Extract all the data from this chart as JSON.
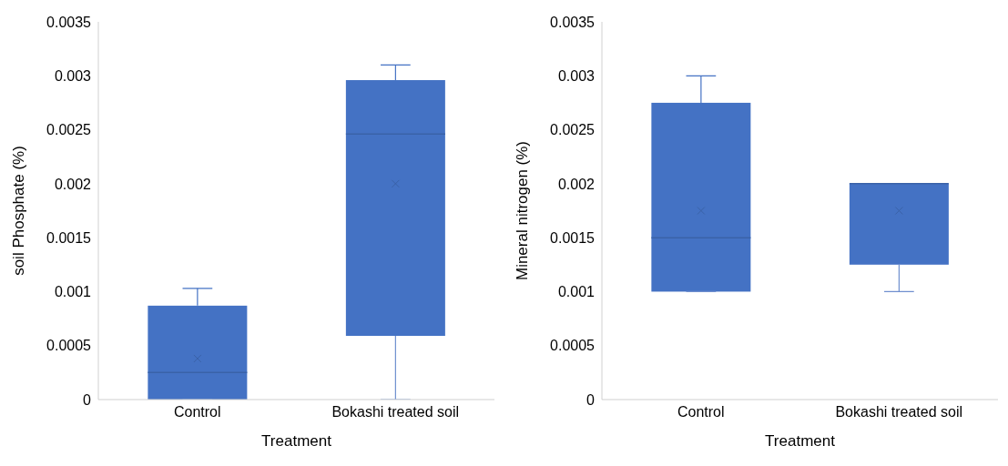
{
  "chart_data": [
    {
      "type": "box",
      "xlabel": "Treatment",
      "ylabel": "soil Phosphate (%)",
      "categories": [
        "Control",
        "Bokashi treated soil"
      ],
      "color": "#4472c4",
      "ylim": [
        0,
        0.0035
      ],
      "yticks": [
        0,
        0.0005,
        0.001,
        0.0015,
        0.002,
        0.0025,
        0.003,
        0.0035
      ],
      "grid": false,
      "legend": false,
      "boxes": [
        {
          "low": 0,
          "q1": 0,
          "median": 0.00025,
          "q3": 0.00087,
          "high": 0.00103,
          "mean": 0.00038
        },
        {
          "low": 0,
          "q1": 0.00059,
          "median": 0.00246,
          "q3": 0.00296,
          "high": 0.0031,
          "mean": 0.002
        }
      ]
    },
    {
      "type": "box",
      "xlabel": "Treatment",
      "ylabel": "Mineral nitrogen (%)",
      "categories": [
        "Control",
        "Bokashi treated soil"
      ],
      "color": "#4472c4",
      "ylim": [
        0,
        0.0035
      ],
      "yticks": [
        0,
        0.0005,
        0.001,
        0.0015,
        0.002,
        0.0025,
        0.003,
        0.0035
      ],
      "grid": false,
      "legend": false,
      "boxes": [
        {
          "low": 0.001,
          "q1": 0.001,
          "median": 0.0015,
          "q3": 0.00275,
          "high": 0.003,
          "mean": 0.00175
        },
        {
          "low": 0.001,
          "q1": 0.00125,
          "median": 0.002,
          "q3": 0.002,
          "high": 0.002,
          "mean": 0.00175
        }
      ]
    }
  ]
}
